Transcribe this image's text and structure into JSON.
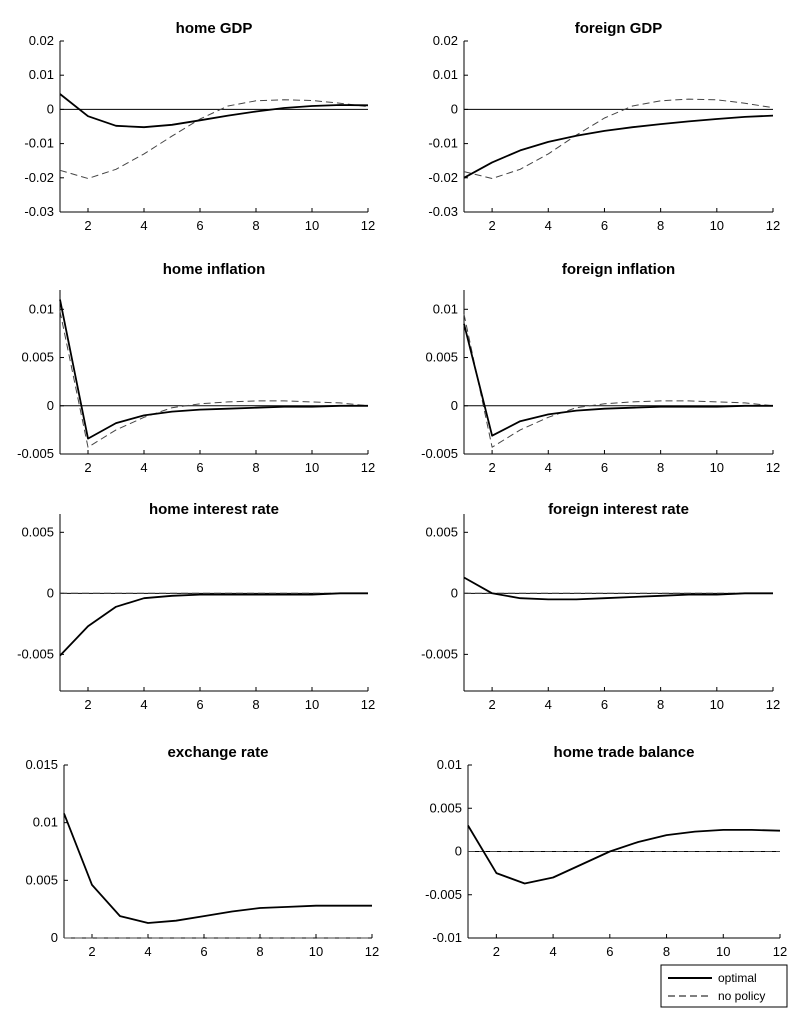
{
  "legend": {
    "optimal_label": "optimal",
    "nopolicy_label": "no policy"
  },
  "chart_data": [
    {
      "type": "line",
      "title": "home GDP",
      "x": [
        1,
        2,
        3,
        4,
        5,
        6,
        7,
        8,
        9,
        10,
        11,
        12
      ],
      "xlim": [
        1,
        12
      ],
      "xticks": [
        2,
        4,
        6,
        8,
        10,
        12
      ],
      "ylim": [
        -0.03,
        0.02
      ],
      "yticks": [
        -0.03,
        -0.02,
        -0.01,
        0,
        0.01,
        0.02
      ],
      "ytick_labels": [
        "-0.03",
        "-0.02",
        "-0.01",
        "0",
        "0.01",
        "0.02"
      ],
      "series": [
        {
          "name": "optimal",
          "style": "solid",
          "values": [
            0.0045,
            -0.002,
            -0.0048,
            -0.0052,
            -0.0045,
            -0.0032,
            -0.0018,
            -0.0006,
            0.0004,
            0.001,
            0.0013,
            0.0012
          ]
        },
        {
          "name": "no policy",
          "style": "dashed",
          "values": [
            -0.0178,
            -0.0202,
            -0.0175,
            -0.013,
            -0.0078,
            -0.0028,
            0.001,
            0.0025,
            0.0028,
            0.0026,
            0.0018,
            0.0008
          ]
        }
      ]
    },
    {
      "type": "line",
      "title": "foreign GDP",
      "x": [
        1,
        2,
        3,
        4,
        5,
        6,
        7,
        8,
        9,
        10,
        11,
        12
      ],
      "xlim": [
        1,
        12
      ],
      "xticks": [
        2,
        4,
        6,
        8,
        10,
        12
      ],
      "ylim": [
        -0.03,
        0.02
      ],
      "yticks": [
        -0.03,
        -0.02,
        -0.01,
        0,
        0.01,
        0.02
      ],
      "ytick_labels": [
        "-0.03",
        "-0.02",
        "-0.01",
        "0",
        "0.01",
        "0.02"
      ],
      "series": [
        {
          "name": "optimal",
          "style": "solid",
          "values": [
            -0.02,
            -0.0155,
            -0.012,
            -0.0095,
            -0.0077,
            -0.0063,
            -0.0052,
            -0.0043,
            -0.0035,
            -0.0028,
            -0.0022,
            -0.0018
          ]
        },
        {
          "name": "no policy",
          "style": "dashed",
          "values": [
            -0.0182,
            -0.0202,
            -0.0175,
            -0.013,
            -0.0075,
            -0.0025,
            0.001,
            0.0025,
            0.003,
            0.0028,
            0.0018,
            0.0005
          ]
        }
      ]
    },
    {
      "type": "line",
      "title": "home inflation",
      "x": [
        1,
        2,
        3,
        4,
        5,
        6,
        7,
        8,
        9,
        10,
        11,
        12
      ],
      "xlim": [
        1,
        12
      ],
      "xticks": [
        2,
        4,
        6,
        8,
        10,
        12
      ],
      "ylim": [
        -0.005,
        0.012
      ],
      "yticks": [
        -0.005,
        0,
        0.005,
        0.01
      ],
      "ytick_labels": [
        "-0.005",
        "0",
        "0.005",
        "0.01"
      ],
      "series": [
        {
          "name": "optimal",
          "style": "solid",
          "values": [
            0.011,
            -0.0034,
            -0.0018,
            -0.001,
            -0.0006,
            -0.0004,
            -0.0003,
            -0.0002,
            -0.0001,
            -0.0001,
            0,
            0
          ]
        },
        {
          "name": "no policy",
          "style": "dashed",
          "values": [
            0.0098,
            -0.0043,
            -0.0025,
            -0.0012,
            -0.0002,
            0.0002,
            0.0004,
            0.0005,
            0.0005,
            0.0004,
            0.0003,
            0
          ]
        }
      ]
    },
    {
      "type": "line",
      "title": "foreign inflation",
      "x": [
        1,
        2,
        3,
        4,
        5,
        6,
        7,
        8,
        9,
        10,
        11,
        12
      ],
      "xlim": [
        1,
        12
      ],
      "xticks": [
        2,
        4,
        6,
        8,
        10,
        12
      ],
      "ylim": [
        -0.005,
        0.012
      ],
      "yticks": [
        -0.005,
        0,
        0.005,
        0.01
      ],
      "ytick_labels": [
        "-0.005",
        "0",
        "0.005",
        "0.01"
      ],
      "series": [
        {
          "name": "optimal",
          "style": "solid",
          "values": [
            0.0085,
            -0.0031,
            -0.0016,
            -0.0009,
            -0.0005,
            -0.0003,
            -0.0002,
            -0.0001,
            -0.0001,
            -0.0001,
            0,
            0
          ]
        },
        {
          "name": "no policy",
          "style": "dashed",
          "values": [
            0.0095,
            -0.0043,
            -0.0025,
            -0.0012,
            -0.0002,
            0.0002,
            0.0004,
            0.0005,
            0.0005,
            0.0004,
            0.0003,
            0
          ]
        }
      ]
    },
    {
      "type": "line",
      "title": "home interest rate",
      "x": [
        1,
        2,
        3,
        4,
        5,
        6,
        7,
        8,
        9,
        10,
        11,
        12
      ],
      "xlim": [
        1,
        12
      ],
      "xticks": [
        2,
        4,
        6,
        8,
        10,
        12
      ],
      "ylim": [
        -0.008,
        0.0065
      ],
      "yticks": [
        -0.005,
        0,
        0.005
      ],
      "ytick_labels": [
        "-0.005",
        "0",
        "0.005"
      ],
      "series": [
        {
          "name": "optimal",
          "style": "solid",
          "values": [
            -0.0051,
            -0.0027,
            -0.0011,
            -0.0004,
            -0.0002,
            -0.0001,
            -0.0001,
            -0.0001,
            -0.0001,
            -0.0001,
            0,
            0
          ]
        },
        {
          "name": "no policy",
          "style": "dashed",
          "values": [
            0,
            0,
            0,
            0,
            0,
            0,
            0,
            0,
            0,
            0,
            0,
            0
          ]
        }
      ]
    },
    {
      "type": "line",
      "title": "foreign interest rate",
      "x": [
        1,
        2,
        3,
        4,
        5,
        6,
        7,
        8,
        9,
        10,
        11,
        12
      ],
      "xlim": [
        1,
        12
      ],
      "xticks": [
        2,
        4,
        6,
        8,
        10,
        12
      ],
      "ylim": [
        -0.008,
        0.0065
      ],
      "yticks": [
        -0.005,
        0,
        0.005
      ],
      "ytick_labels": [
        "-0.005",
        "0",
        "0.005"
      ],
      "series": [
        {
          "name": "optimal",
          "style": "solid",
          "values": [
            0.0013,
            0,
            -0.0004,
            -0.0005,
            -0.0005,
            -0.0004,
            -0.0003,
            -0.0002,
            -0.0001,
            -0.0001,
            0,
            0
          ]
        },
        {
          "name": "no policy",
          "style": "dashed",
          "values": [
            0,
            0,
            0,
            0,
            0,
            0,
            0,
            0,
            0,
            0,
            0,
            0
          ]
        }
      ]
    },
    {
      "type": "line",
      "title": "exchange rate",
      "x": [
        1,
        2,
        3,
        4,
        5,
        6,
        7,
        8,
        9,
        10,
        11,
        12
      ],
      "xlim": [
        1,
        12
      ],
      "xticks": [
        2,
        4,
        6,
        8,
        10,
        12
      ],
      "ylim": [
        0,
        0.015
      ],
      "yticks": [
        0,
        0.005,
        0.01,
        0.015
      ],
      "ytick_labels": [
        "0",
        "0.005",
        "0.01",
        "0.015"
      ],
      "series": [
        {
          "name": "optimal",
          "style": "solid",
          "values": [
            0.0108,
            0.0046,
            0.0019,
            0.0013,
            0.0015,
            0.0019,
            0.0023,
            0.0026,
            0.0027,
            0.0028,
            0.0028,
            0.0028
          ]
        },
        {
          "name": "no policy",
          "style": "dashed",
          "values": [
            0,
            0,
            0,
            0,
            0,
            0,
            0,
            0,
            0,
            0,
            0,
            0
          ]
        }
      ]
    },
    {
      "type": "line",
      "title": "home trade balance",
      "x": [
        1,
        2,
        3,
        4,
        5,
        6,
        7,
        8,
        9,
        10,
        11,
        12
      ],
      "xlim": [
        1,
        12
      ],
      "xticks": [
        2,
        4,
        6,
        8,
        10,
        12
      ],
      "ylim": [
        -0.01,
        0.01
      ],
      "yticks": [
        -0.01,
        -0.005,
        0,
        0.005,
        0.01
      ],
      "ytick_labels": [
        "-0.01",
        "-0.005",
        "0",
        "0.005",
        "0.01"
      ],
      "series": [
        {
          "name": "optimal",
          "style": "solid",
          "values": [
            0.003,
            -0.0025,
            -0.0037,
            -0.003,
            -0.0015,
            0,
            0.0011,
            0.0019,
            0.0023,
            0.0025,
            0.0025,
            0.0024
          ]
        },
        {
          "name": "no policy",
          "style": "dashed",
          "values": [
            0,
            0,
            0,
            0,
            0,
            0,
            0,
            0,
            0,
            0,
            0,
            0
          ]
        }
      ]
    }
  ]
}
